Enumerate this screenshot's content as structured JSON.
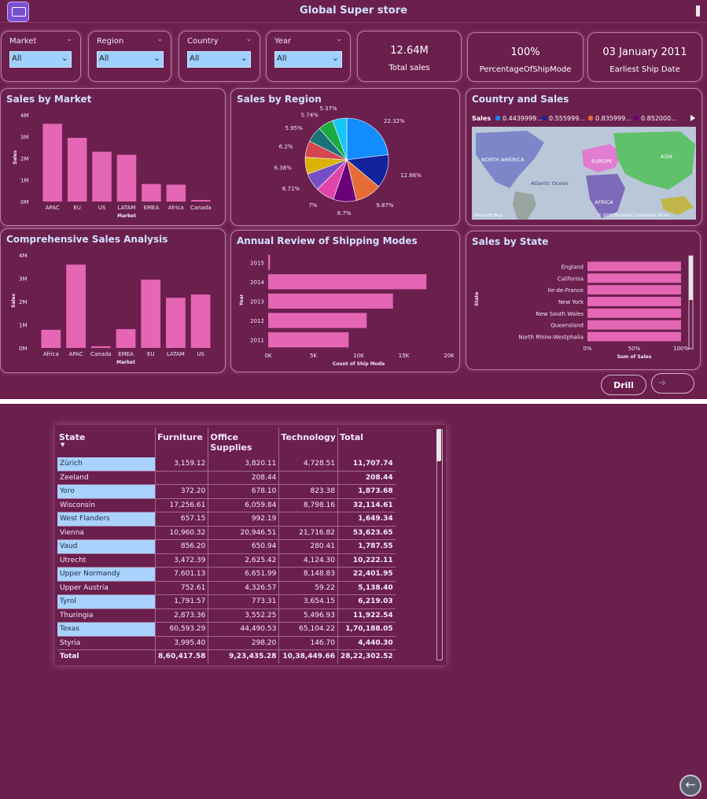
{
  "app": {
    "title": "Global Super store"
  },
  "slicers": [
    {
      "label": "Market",
      "value": "All"
    },
    {
      "label": "Region",
      "value": "All"
    },
    {
      "label": "Country",
      "value": "All"
    },
    {
      "label": "Year",
      "value": "All"
    }
  ],
  "cards": [
    {
      "value": "12.64M",
      "caption": "Total sales"
    },
    {
      "value": "100%",
      "caption": "PercentageOfShipMode"
    },
    {
      "value": "03 January 2011",
      "caption": "Earliest Ship Date"
    }
  ],
  "panels": {
    "sales_by_market": "Sales by Market",
    "sales_by_region": "Sales by Region",
    "country_and_sales": "Country and Sales",
    "comprehensive": "Comprehensive Sales Analysis",
    "annual_review": "Annual Review of Shipping Modes",
    "sales_by_state": "Sales by State"
  },
  "map": {
    "legend_title": "Sales",
    "legend_items": [
      "0.4439999...",
      "0.555999...",
      "0.835999...",
      "0.852000..."
    ],
    "legend_colors": [
      "#118dff",
      "#12239e",
      "#e66c37",
      "#6b007b"
    ],
    "labels": [
      "NORTH AMERICA",
      "EUROPE",
      "ASIA",
      "Atlantic Ocean",
      "AFRICA"
    ],
    "attribution_left": "Microsoft Bing",
    "attribution_right": "© 2025 Microsoft Corporation  Terms"
  },
  "buttons": {
    "drill": "Drill",
    "next": "➔",
    "back": "←"
  },
  "chart_data": [
    {
      "type": "bar",
      "title": "Sales by Market",
      "categories": [
        "APAC",
        "EU",
        "US",
        "LATAM",
        "EMEA",
        "Africa",
        "Canada"
      ],
      "values": [
        3.59,
        2.94,
        2.3,
        2.16,
        0.81,
        0.78,
        0.07
      ],
      "unit": "M",
      "xlabel": "Market",
      "ylabel": "Sales",
      "yticks": [
        "0M",
        "1M",
        "2M",
        "3M",
        "4M"
      ],
      "ylim": [
        0,
        4
      ],
      "color": "#e466b4"
    },
    {
      "type": "pie",
      "title": "Sales by Region",
      "labels": [
        "22.32%",
        "12.66%",
        "9.87%",
        "8.7%",
        "7%",
        "6.71%",
        "6.38%",
        "6.2%",
        "5.95%",
        "5.74%",
        "5.37%"
      ],
      "values": [
        22.32,
        12.66,
        9.87,
        8.7,
        7.0,
        6.71,
        6.38,
        6.2,
        5.95,
        5.74,
        5.37
      ],
      "colors": [
        "#118dff",
        "#12239e",
        "#e66c37",
        "#6b007b",
        "#e044a7",
        "#744ec2",
        "#d9b300",
        "#d64550",
        "#197278",
        "#1aab40",
        "#15c6f4"
      ]
    },
    {
      "type": "bar",
      "title": "Comprehensive Sales Analysis",
      "categories": [
        "Africa",
        "APAC",
        "Canada",
        "EMEA",
        "EU",
        "LATAM",
        "US"
      ],
      "values": [
        0.78,
        3.59,
        0.07,
        0.81,
        2.94,
        2.16,
        2.3
      ],
      "unit": "M",
      "xlabel": "Market",
      "ylabel": "Sales",
      "yticks": [
        "0M",
        "1M",
        "2M",
        "3M",
        "4M"
      ],
      "ylim": [
        0,
        4
      ],
      "color": "#e466b4"
    },
    {
      "type": "bar",
      "orientation": "horizontal",
      "title": "Annual Review of Shipping Modes",
      "categories": [
        "2015",
        "2014",
        "2013",
        "2012",
        "2011"
      ],
      "values": [
        200,
        17500,
        13800,
        10900,
        8900
      ],
      "xlabel": "Count of Ship Mode",
      "ylabel": "Year",
      "xticks": [
        "0K",
        "5K",
        "10K",
        "15K",
        "20K"
      ],
      "xlim": [
        0,
        20000
      ],
      "color": "#e466b4"
    },
    {
      "type": "bar",
      "orientation": "horizontal",
      "title": "Sales by State",
      "categories": [
        "England",
        "California",
        "Ile-de-France",
        "New York",
        "New South Wales",
        "Queensland",
        "North Rhine-Westphalia"
      ],
      "values": [
        100,
        100,
        100,
        100,
        100,
        100,
        100
      ],
      "xlabel": "Sum of Sales",
      "ylabel": "State",
      "xticks": [
        "0%",
        "50%",
        "100%"
      ],
      "xlim": [
        0,
        100
      ],
      "color": "#e466b4"
    },
    {
      "type": "table",
      "columns": [
        "State",
        "Furniture",
        "Office Supplies",
        "Technology",
        "Total"
      ],
      "rows": [
        [
          "Zürich",
          "3,159.12",
          "3,820.11",
          "4,728.51",
          "11,707.74"
        ],
        [
          "Zeeland",
          "",
          "208.44",
          "",
          "208.44"
        ],
        [
          "Yoro",
          "372.20",
          "678.10",
          "823.38",
          "1,873.68"
        ],
        [
          "Wisconsin",
          "17,256.61",
          "6,059.84",
          "8,798.16",
          "32,114.61"
        ],
        [
          "West Flanders",
          "657.15",
          "992.19",
          "",
          "1,649.34"
        ],
        [
          "Vienna",
          "10,960.32",
          "20,946.51",
          "21,716.82",
          "53,623.65"
        ],
        [
          "Vaud",
          "856.20",
          "650.94",
          "280.41",
          "1,787.55"
        ],
        [
          "Utrecht",
          "3,472.39",
          "2,625.42",
          "4,124.30",
          "10,222.11"
        ],
        [
          "Upper Normandy",
          "7,601.13",
          "6,651.99",
          "8,148.83",
          "22,401.95"
        ],
        [
          "Upper Austria",
          "752.61",
          "4,326.57",
          "59.22",
          "5,138.40"
        ],
        [
          "Tyrol",
          "1,791.57",
          "773.31",
          "3,654.15",
          "6,219.03"
        ],
        [
          "Thuringia",
          "2,873.36",
          "3,552.25",
          "5,496.93",
          "11,922.54"
        ],
        [
          "Texas",
          "60,593.29",
          "44,490.53",
          "65,104.22",
          "1,70,188.05"
        ],
        [
          "Styria",
          "3,995.40",
          "298.20",
          "146.70",
          "4,440.30"
        ]
      ],
      "highlighted_rows": [
        0,
        2,
        4,
        6,
        8,
        10,
        12
      ],
      "total": [
        "Total",
        "8,60,417.58",
        "9,23,435.28",
        "10,38,449.66",
        "28,22,302.52"
      ]
    }
  ]
}
